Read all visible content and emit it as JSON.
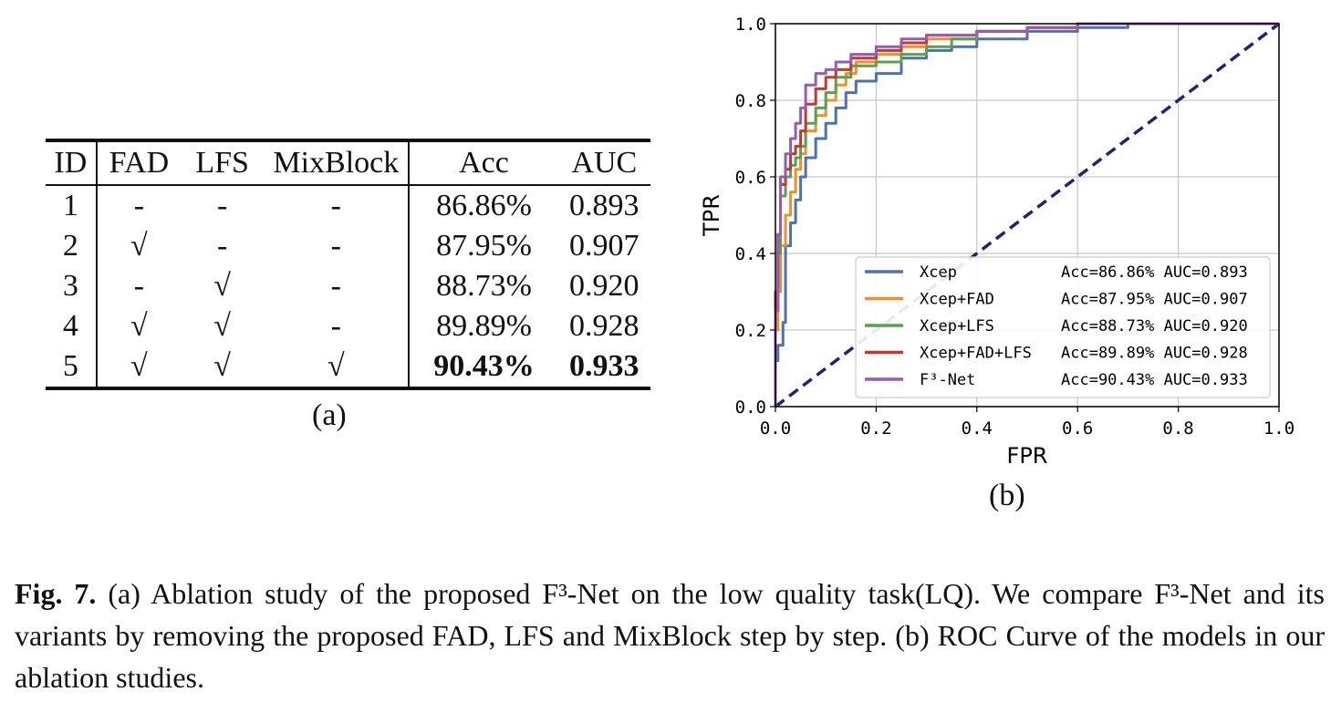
{
  "table": {
    "headers": [
      "ID",
      "FAD",
      "LFS",
      "MixBlock",
      "Acc",
      "AUC"
    ],
    "rows": [
      [
        "1",
        "-",
        "-",
        "-",
        "86.86%",
        "0.893"
      ],
      [
        "2",
        "√",
        "-",
        "-",
        "87.95%",
        "0.907"
      ],
      [
        "3",
        "-",
        "√",
        "-",
        "88.73%",
        "0.920"
      ],
      [
        "4",
        "√",
        "√",
        "-",
        "89.89%",
        "0.928"
      ],
      [
        "5",
        "√",
        "√",
        "√",
        "90.43%",
        "0.933"
      ]
    ],
    "sublabel": "(a)"
  },
  "figure_b": {
    "sublabel": "(b)"
  },
  "chart_data": {
    "type": "line",
    "xlabel": "FPR",
    "ylabel": "TPR",
    "xlim": [
      0.0,
      1.0
    ],
    "ylim": [
      0.0,
      1.0
    ],
    "grid": true,
    "legend_position": "lower-right",
    "x_ticks": [
      "0.0",
      "0.2",
      "0.4",
      "0.6",
      "0.8",
      "1.0"
    ],
    "y_ticks": [
      "0.0",
      "0.2",
      "0.4",
      "0.6",
      "0.8",
      "1.0"
    ],
    "series": [
      {
        "name": "Xcep",
        "stats": "Acc=86.86% AUC=0.893",
        "color": "#4c72b0",
        "x": [
          0,
          0.005,
          0.01,
          0.015,
          0.02,
          0.02,
          0.03,
          0.04,
          0.05,
          0.06,
          0.08,
          0.1,
          0.12,
          0.14,
          0.16,
          0.2,
          0.25,
          0.3,
          0.35,
          0.4,
          0.5,
          0.6,
          0.7,
          0.8,
          0.9,
          1.0
        ],
        "y": [
          0,
          0.12,
          0.16,
          0.16,
          0.22,
          0.35,
          0.42,
          0.48,
          0.54,
          0.6,
          0.65,
          0.7,
          0.74,
          0.78,
          0.82,
          0.85,
          0.87,
          0.91,
          0.93,
          0.94,
          0.96,
          0.98,
          0.99,
          1.0,
          1.0,
          1.0
        ]
      },
      {
        "name": "Xcep+FAD",
        "stats": "Acc=87.95% AUC=0.907",
        "color": "#f28e2b",
        "x": [
          0,
          0.005,
          0.01,
          0.02,
          0.03,
          0.04,
          0.05,
          0.06,
          0.08,
          0.1,
          0.12,
          0.14,
          0.16,
          0.2,
          0.25,
          0.3,
          0.4,
          0.5,
          0.6,
          0.7,
          0.8,
          1.0
        ],
        "y": [
          0,
          0.2,
          0.3,
          0.42,
          0.5,
          0.56,
          0.62,
          0.66,
          0.72,
          0.76,
          0.8,
          0.84,
          0.87,
          0.9,
          0.92,
          0.94,
          0.96,
          0.98,
          0.99,
          1.0,
          1.0,
          1.0
        ]
      },
      {
        "name": "Xcep+LFS",
        "stats": "Acc=88.73% AUC=0.920",
        "color": "#59a14f",
        "x": [
          0,
          0.005,
          0.01,
          0.02,
          0.03,
          0.04,
          0.05,
          0.06,
          0.08,
          0.1,
          0.12,
          0.15,
          0.2,
          0.25,
          0.3,
          0.35,
          0.4,
          0.5,
          0.6,
          0.7,
          1.0
        ],
        "y": [
          0,
          0.25,
          0.4,
          0.55,
          0.6,
          0.63,
          0.65,
          0.68,
          0.74,
          0.78,
          0.82,
          0.86,
          0.89,
          0.9,
          0.92,
          0.94,
          0.96,
          0.98,
          0.99,
          1.0,
          1.0
        ]
      },
      {
        "name": "Xcep+FAD+LFS",
        "stats": "Acc=89.89% AUC=0.928",
        "color": "#c0392b",
        "x": [
          0,
          0.005,
          0.01,
          0.02,
          0.03,
          0.04,
          0.05,
          0.06,
          0.08,
          0.1,
          0.12,
          0.15,
          0.2,
          0.25,
          0.3,
          0.4,
          0.5,
          0.6,
          0.7,
          1.0
        ],
        "y": [
          0,
          0.3,
          0.45,
          0.58,
          0.62,
          0.66,
          0.68,
          0.72,
          0.79,
          0.83,
          0.86,
          0.88,
          0.91,
          0.93,
          0.95,
          0.97,
          0.98,
          0.99,
          1.0,
          1.0
        ]
      },
      {
        "name": "F³-Net",
        "stats": "Acc=90.43% AUC=0.933",
        "color": "#9b59b6",
        "x": [
          0,
          0.005,
          0.01,
          0.02,
          0.03,
          0.04,
          0.05,
          0.06,
          0.08,
          0.1,
          0.12,
          0.15,
          0.2,
          0.25,
          0.3,
          0.4,
          0.5,
          0.6,
          0.7,
          1.0
        ],
        "y": [
          0,
          0.25,
          0.45,
          0.6,
          0.66,
          0.7,
          0.74,
          0.78,
          0.84,
          0.87,
          0.88,
          0.9,
          0.92,
          0.94,
          0.96,
          0.97,
          0.98,
          0.99,
          1.0,
          1.0
        ]
      }
    ],
    "reference_line": {
      "x": [
        0,
        1
      ],
      "y": [
        0,
        1
      ],
      "color": "#1a237e",
      "style": "dashed"
    }
  },
  "caption": {
    "label": "Fig. 7.",
    "text": " (a) Ablation study of the proposed F³-Net on the low quality task(LQ). We compare F³-Net and its variants by removing the proposed FAD, LFS and MixBlock step by step. (b) ROC Curve of the models in our ablation studies."
  }
}
